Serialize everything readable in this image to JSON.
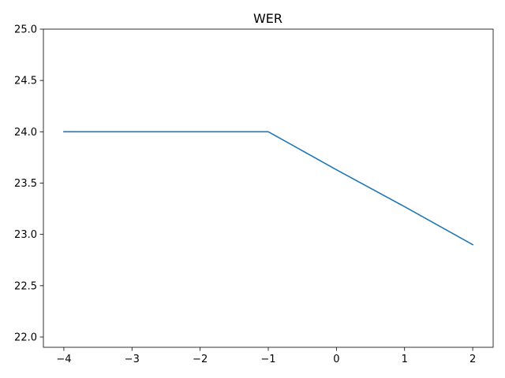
{
  "chart_data": {
    "type": "line",
    "title": "WER",
    "xlabel": "",
    "ylabel": "",
    "xlim": [
      -4.3,
      2.3
    ],
    "ylim": [
      21.9,
      25.0
    ],
    "xticks": [
      -4,
      -3,
      -2,
      -1,
      0,
      1,
      2
    ],
    "xtick_labels": [
      "−4",
      "−3",
      "−2",
      "−1",
      "0",
      "1",
      "2"
    ],
    "yticks": [
      22.0,
      22.5,
      23.0,
      23.5,
      24.0,
      24.5,
      25.0
    ],
    "ytick_labels": [
      "22.0",
      "22.5",
      "23.0",
      "23.5",
      "24.0",
      "24.5",
      "25.0"
    ],
    "grid": false,
    "series": [
      {
        "color": "#1f77b4",
        "x": [
          -4,
          -3,
          -2,
          -1,
          0,
          1,
          2
        ],
        "y": [
          24.0,
          24.0,
          24.0,
          24.0,
          23.63,
          23.27,
          22.9
        ]
      }
    ]
  }
}
